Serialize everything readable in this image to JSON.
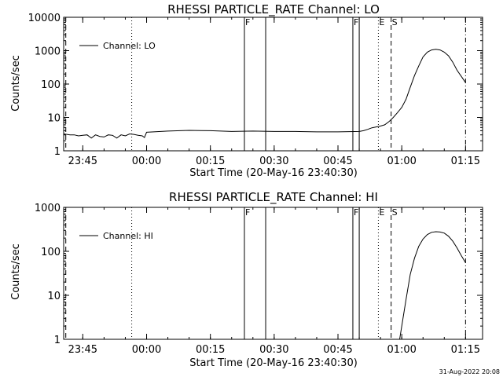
{
  "footer_timestamp": "31-Aug-2022 20:08",
  "chart_data": [
    {
      "type": "line",
      "title": "RHESSI PARTICLE_RATE Channel: LO",
      "xlabel": "Start Time (20-May-16 23:40:30)",
      "ylabel": "Counts/sec",
      "y_scale": "log",
      "ylim": [
        1,
        10000
      ],
      "y_ticks": [
        1,
        10,
        100,
        1000,
        10000
      ],
      "y_tick_labels": [
        "1",
        "10",
        "100",
        "1000",
        "10000"
      ],
      "xlim": [
        "23:40:30",
        "01:19:00"
      ],
      "x_ticks": [
        "23:45",
        "00:00",
        "00:15",
        "00:30",
        "00:45",
        "01:00",
        "01:15"
      ],
      "legend": {
        "label": "Channel: LO",
        "position": "top-left"
      },
      "series": [
        {
          "name": "Channel: LO",
          "x": [
            "23:40:30",
            "23:42:00",
            "23:43:00",
            "23:44:00",
            "23:45:00",
            "23:46:00",
            "23:47:00",
            "23:48:00",
            "23:49:00",
            "23:50:00",
            "23:51:00",
            "23:52:00",
            "23:53:00",
            "23:54:00",
            "23:55:00",
            "23:56:00",
            "23:57:00",
            "23:58:00",
            "23:59:00",
            "23:59:30",
            "00:00:00",
            "00:05:00",
            "00:10:00",
            "00:15:00",
            "00:20:00",
            "00:25:00",
            "00:30:00",
            "00:35:00",
            "00:40:00",
            "00:45:00",
            "00:50:00",
            "00:51:00",
            "00:52:00",
            "00:53:00",
            "00:54:00",
            "00:55:00",
            "00:56:00",
            "00:57:00",
            "00:58:00",
            "00:59:00",
            "01:00:00",
            "01:01:00",
            "01:02:00",
            "01:03:00",
            "01:04:00",
            "01:05:00",
            "01:06:00",
            "01:07:00",
            "01:08:00",
            "01:09:00",
            "01:10:00",
            "01:11:00",
            "01:12:00",
            "01:13:00",
            "01:14:00",
            "01:15:00"
          ],
          "y": [
            3.2,
            3.0,
            3.0,
            2.8,
            2.9,
            3.0,
            2.4,
            3.0,
            2.7,
            2.6,
            3.0,
            2.9,
            2.4,
            3.0,
            2.8,
            3.2,
            3.1,
            2.9,
            2.8,
            2.5,
            3.6,
            3.9,
            4.1,
            4.0,
            3.8,
            3.9,
            3.8,
            3.8,
            3.7,
            3.7,
            3.8,
            4.0,
            4.4,
            4.9,
            5.2,
            5.5,
            6.0,
            7.5,
            10,
            14,
            20,
            35,
            80,
            180,
            350,
            650,
            900,
            1050,
            1100,
            1050,
            900,
            700,
            450,
            260,
            170,
            110
          ]
        }
      ],
      "markers": [
        {
          "label": "",
          "time": "23:41:00",
          "style": "dashed"
        },
        {
          "label": "",
          "time": "23:56:30",
          "style": "dotted"
        },
        {
          "label": "F",
          "time": "00:23:00",
          "style": "solid"
        },
        {
          "label": "",
          "time": "00:28:00",
          "style": "solid"
        },
        {
          "label": "F",
          "time": "00:48:30",
          "style": "solid"
        },
        {
          "label": "",
          "time": "00:50:00",
          "style": "solid"
        },
        {
          "label": "E",
          "time": "00:54:30",
          "style": "dotted"
        },
        {
          "label": "S",
          "time": "00:57:30",
          "style": "dashed"
        },
        {
          "label": "",
          "time": "01:15:00",
          "style": "dashdot"
        }
      ]
    },
    {
      "type": "line",
      "title": "RHESSI PARTICLE_RATE Channel: HI",
      "xlabel": "Start Time (20-May-16 23:40:30)",
      "ylabel": "Counts/sec",
      "y_scale": "log",
      "ylim": [
        1,
        1000
      ],
      "y_ticks": [
        1,
        10,
        100,
        1000
      ],
      "y_tick_labels": [
        "1",
        "10",
        "100",
        "1000"
      ],
      "xlim": [
        "23:40:30",
        "01:19:00"
      ],
      "x_ticks": [
        "23:45",
        "00:00",
        "00:15",
        "00:30",
        "00:45",
        "01:00",
        "01:15"
      ],
      "legend": {
        "label": "Channel: HI",
        "position": "top-left"
      },
      "series": [
        {
          "name": "Channel: HI",
          "x": [
            "00:59:30",
            "01:00:00",
            "01:01:00",
            "01:02:00",
            "01:03:00",
            "01:04:00",
            "01:05:00",
            "01:06:00",
            "01:07:00",
            "01:08:00",
            "01:09:00",
            "01:10:00",
            "01:11:00",
            "01:12:00",
            "01:13:00",
            "01:14:00",
            "01:15:00"
          ],
          "y": [
            1.0,
            2,
            8,
            30,
            70,
            130,
            190,
            240,
            270,
            280,
            275,
            260,
            220,
            170,
            120,
            80,
            55
          ]
        }
      ],
      "markers": [
        {
          "label": "",
          "time": "23:41:00",
          "style": "dashed"
        },
        {
          "label": "",
          "time": "23:56:30",
          "style": "dotted"
        },
        {
          "label": "F",
          "time": "00:23:00",
          "style": "solid"
        },
        {
          "label": "",
          "time": "00:28:00",
          "style": "solid"
        },
        {
          "label": "F",
          "time": "00:48:30",
          "style": "solid"
        },
        {
          "label": "",
          "time": "00:50:00",
          "style": "solid"
        },
        {
          "label": "E",
          "time": "00:54:30",
          "style": "dotted"
        },
        {
          "label": "S",
          "time": "00:57:30",
          "style": "dashed"
        },
        {
          "label": "",
          "time": "01:15:00",
          "style": "dashdot"
        }
      ]
    }
  ]
}
